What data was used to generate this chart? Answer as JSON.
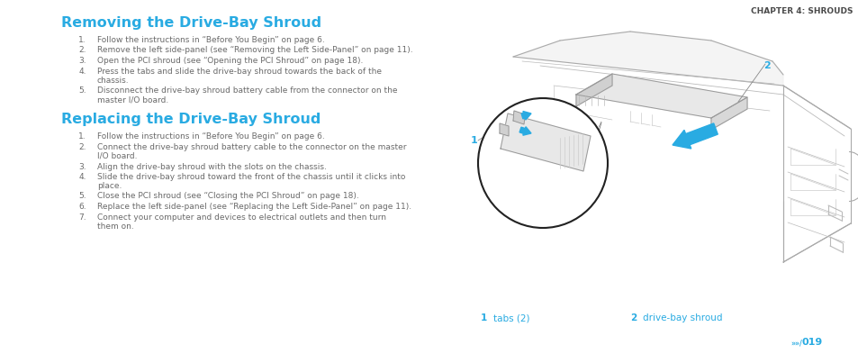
{
  "bg_color": "#ffffff",
  "chapter_header": "CHAPTER 4: SHROUDS",
  "chapter_header_color": "#4a4a4a",
  "chapter_header_fontsize": 6.5,
  "title1": "Removing the Drive-Bay Shroud",
  "title2": "Replacing the Drive-Bay Shroud",
  "title_color": "#29abe2",
  "title_fontsize": 11.5,
  "body_color": "#6a6a6a",
  "body_fontsize": 6.5,
  "num_indent": 100,
  "text_indent": 116,
  "remove_steps": [
    [
      "Follow the instructions in “Before You Begin” on page 6."
    ],
    [
      "Remove the left side-panel (see “Removing the Left Side-Panel” on page 11)."
    ],
    [
      "Open the PCI shroud (see “Opening the PCI Shroud” on page 18)."
    ],
    [
      "Press the tabs and slide the drive-bay shroud towards the back of the",
      "chassis."
    ],
    [
      "Disconnect the drive-bay shroud battery cable from the connector on the",
      "master I/O board."
    ]
  ],
  "replace_steps": [
    [
      "Follow the instructions in “Before You Begin” on page 6."
    ],
    [
      "Connect the drive-bay shroud battery cable to the connector on the master",
      "I/O board."
    ],
    [
      "Align the drive-bay shroud with the slots on the chassis."
    ],
    [
      "Slide the drive-bay shroud toward the front of the chassis until it clicks into",
      "place."
    ],
    [
      "Close the PCI shroud (see “Closing the PCI Shroud” on page 18)."
    ],
    [
      "Replace the left side-panel (see “Replacing the Left Side-Panel” on page 11)."
    ],
    [
      "Connect your computer and devices to electrical outlets and then turn",
      "them on."
    ]
  ],
  "label1_num": "1",
  "label1_text": "tabs (2)",
  "label2_num": "2",
  "label2_text": "drive-bay shroud",
  "label_color": "#29abe2",
  "label_num_fontsize": 7.5,
  "label_text_fontsize": 7.5,
  "page_num": "019",
  "page_icon_color": "#29abe2",
  "arrow_blue": "#29abe2",
  "chassis_line": "#aaaaaa",
  "chassis_line_inner": "#bbbbbb",
  "circle_edge": "#222222"
}
